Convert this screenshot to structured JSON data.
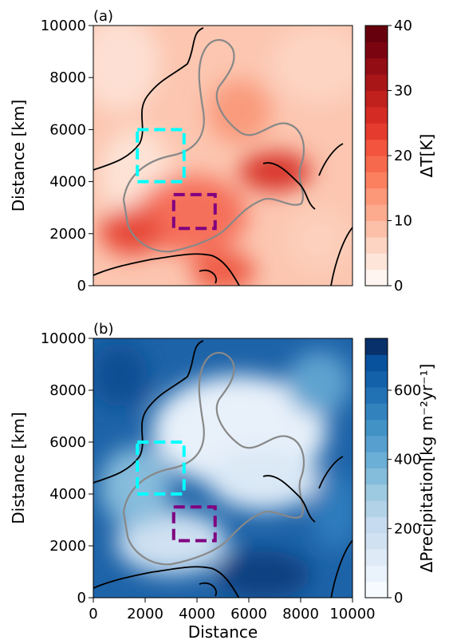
{
  "chart_data": [
    {
      "type": "contour",
      "panel_label": "(a)",
      "ylabel": "Distance [km]",
      "xlim": [
        0,
        10000
      ],
      "ylim": [
        0,
        10000
      ],
      "yticks": [
        0,
        2000,
        4000,
        6000,
        8000,
        10000
      ],
      "colorbar": {
        "label": "ΔT[K]",
        "lim": [
          0,
          40
        ],
        "ticks": [
          0,
          10,
          20,
          30,
          40
        ],
        "colors": [
          "#fff5f0",
          "#fee5d9",
          "#fdd4c2",
          "#fcbfa8",
          "#fcab8f",
          "#fc9777",
          "#fb8060",
          "#f7694c",
          "#f2543d",
          "#e53b2e",
          "#d42c24",
          "#c0211d",
          "#a91618",
          "#930d14",
          "#7a0510",
          "#67000d"
        ]
      },
      "regions": [
        {
          "color": "#00ffff",
          "x": [
            1700,
            3500
          ],
          "y": [
            4000,
            6000
          ]
        },
        {
          "color": "#800080",
          "x": [
            3100,
            4700
          ],
          "y": [
            2200,
            3500
          ]
        }
      ]
    },
    {
      "type": "contour",
      "panel_label": "(b)",
      "ylabel": "Distance [km]",
      "xlabel": "Distance",
      "xlim": [
        0,
        10000
      ],
      "ylim": [
        0,
        10000
      ],
      "xticks": [
        0,
        2000,
        4000,
        6000,
        8000,
        10000
      ],
      "yticks": [
        0,
        2000,
        4000,
        6000,
        8000,
        10000
      ],
      "colorbar": {
        "label": "ΔPrecipitation[kg m⁻²yr⁻¹]",
        "lim": [
          0,
          750
        ],
        "ticks": [
          0,
          200,
          400,
          600
        ],
        "colors": [
          "#f7fbff",
          "#eaf2fb",
          "#deebf7",
          "#d0e2f2",
          "#c6dbef",
          "#b2d2e8",
          "#9ecae1",
          "#84bcdb",
          "#6baed6",
          "#569fcf",
          "#4292c6",
          "#3282be",
          "#2171b5",
          "#1361a9",
          "#08519c",
          "#08306b"
        ]
      },
      "regions": [
        {
          "color": "#00ffff",
          "x": [
            1700,
            3500
          ],
          "y": [
            4000,
            6000
          ]
        },
        {
          "color": "#800080",
          "x": [
            3100,
            4700
          ],
          "y": [
            2200,
            3500
          ]
        }
      ]
    }
  ]
}
